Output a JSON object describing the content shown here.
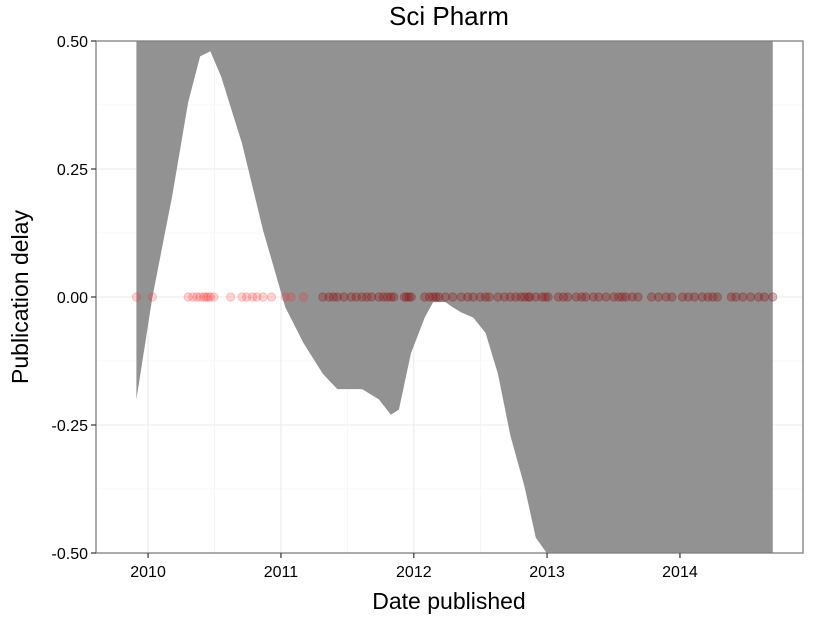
{
  "chart_data": {
    "type": "scatter",
    "title": "Sci Pharm",
    "xlabel": "Date published",
    "ylabel": "Publication delay",
    "xlim": [
      "2009-08-11",
      "2014-12-05"
    ],
    "ylim": [
      -0.5,
      0.5
    ],
    "x_ticks": [
      "2010",
      "2011",
      "2012",
      "2013",
      "2014"
    ],
    "y_ticks": [
      "-0.50",
      "-0.25",
      "0.00",
      "0.25",
      "0.50"
    ],
    "grid": true,
    "legend": "none",
    "colors": {
      "points_early": "#ff2a2a",
      "points_late": "#8b1a1a",
      "ribbon": "#8c8c8c",
      "frame": "#7f7f7f",
      "grid": "#ebebeb"
    },
    "points": {
      "y": 0.0,
      "x": [
        "2009-11-30",
        "2010-01-13",
        "2010-04-21",
        "2010-05-04",
        "2010-05-15",
        "2010-05-24",
        "2010-06-03",
        "2010-06-09",
        "2010-06-15",
        "2010-06-21",
        "2010-07-01",
        "2010-08-16",
        "2010-09-16",
        "2010-09-29",
        "2010-10-15",
        "2010-10-27",
        "2010-11-13",
        "2010-12-06",
        "2011-01-13",
        "2011-01-29",
        "2011-03-04",
        "2011-04-26",
        "2011-05-13",
        "2011-05-25",
        "2011-06-05",
        "2011-06-23",
        "2011-07-13",
        "2011-07-27",
        "2011-08-12",
        "2011-08-25",
        "2011-09-07",
        "2011-09-27",
        "2011-10-09",
        "2011-10-20",
        "2011-10-30",
        "2011-11-07",
        "2011-12-06",
        "2011-12-12",
        "2011-12-19",
        "2011-12-25",
        "2012-01-31",
        "2012-02-13",
        "2012-02-23",
        "2012-03-02",
        "2012-03-10",
        "2012-03-28",
        "2012-04-17",
        "2012-05-10",
        "2012-05-28",
        "2012-06-12",
        "2012-07-01",
        "2012-07-16",
        "2012-07-26",
        "2012-08-19",
        "2012-09-06",
        "2012-09-22",
        "2012-10-07",
        "2012-10-21",
        "2012-10-31",
        "2012-11-10",
        "2012-11-15",
        "2012-12-01",
        "2012-12-18",
        "2012-12-27",
        "2013-01-04",
        "2013-02-01",
        "2013-02-15",
        "2013-02-27",
        "2013-03-22",
        "2013-04-06",
        "2013-04-17",
        "2013-05-08",
        "2013-05-23",
        "2013-06-12",
        "2013-07-03",
        "2013-07-17",
        "2013-07-27",
        "2013-08-06",
        "2013-08-23",
        "2013-09-08",
        "2013-10-15",
        "2013-11-03",
        "2013-11-24",
        "2013-12-10",
        "2014-01-08",
        "2014-01-24",
        "2014-02-10",
        "2014-03-03",
        "2014-03-19",
        "2014-04-01",
        "2014-04-14",
        "2014-05-22",
        "2014-06-04",
        "2014-06-23",
        "2014-07-14",
        "2014-08-05",
        "2014-08-21",
        "2014-09-13"
      ]
    },
    "smooth_ribbon": {
      "x": [
        "2009-11-30",
        "2010-01-13",
        "2010-03-09",
        "2010-04-21",
        "2010-05-24",
        "2010-06-21",
        "2010-07-21",
        "2010-09-16",
        "2010-11-13",
        "2011-01-13",
        "2011-03-04",
        "2011-04-26",
        "2011-06-05",
        "2011-07-13",
        "2011-08-12",
        "2011-09-27",
        "2011-10-30",
        "2011-11-21",
        "2011-12-24",
        "2012-01-31",
        "2012-02-23",
        "2012-03-28",
        "2012-04-17",
        "2012-05-10",
        "2012-06-12",
        "2012-07-16",
        "2012-08-19",
        "2012-09-22",
        "2012-10-31",
        "2012-12-01",
        "2012-12-31",
        "2013-01-31",
        "2013-02-28",
        "2013-04-06",
        "2013-05-23",
        "2013-07-27",
        "2013-10-15",
        "2014-01-08",
        "2014-04-01",
        "2014-06-23",
        "2014-09-13"
      ],
      "lower": [
        -0.2,
        0.0,
        0.2,
        0.38,
        0.47,
        0.48,
        0.43,
        0.3,
        0.13,
        -0.02,
        -0.09,
        -0.15,
        -0.18,
        -0.18,
        -0.18,
        -0.2,
        -0.23,
        -0.22,
        -0.11,
        -0.04,
        -0.01,
        -0.01,
        -0.02,
        -0.03,
        -0.04,
        -0.07,
        -0.15,
        -0.27,
        -0.37,
        -0.47,
        -0.5,
        -0.5,
        -0.5,
        -0.5,
        -0.5,
        -0.5,
        -0.5,
        -0.5,
        -0.5,
        -0.5,
        -0.5
      ],
      "upper": [
        0.5,
        0.5,
        0.5,
        0.5,
        0.5,
        0.5,
        0.5,
        0.5,
        0.5,
        0.5,
        0.5,
        0.5,
        0.5,
        0.5,
        0.5,
        0.5,
        0.5,
        0.5,
        0.5,
        0.5,
        0.5,
        0.5,
        0.5,
        0.5,
        0.5,
        0.5,
        0.5,
        0.5,
        0.5,
        0.5,
        0.5,
        0.5,
        0.5,
        0.5,
        0.5,
        0.5,
        0.5,
        0.5,
        0.5,
        0.5,
        0.5
      ]
    }
  }
}
